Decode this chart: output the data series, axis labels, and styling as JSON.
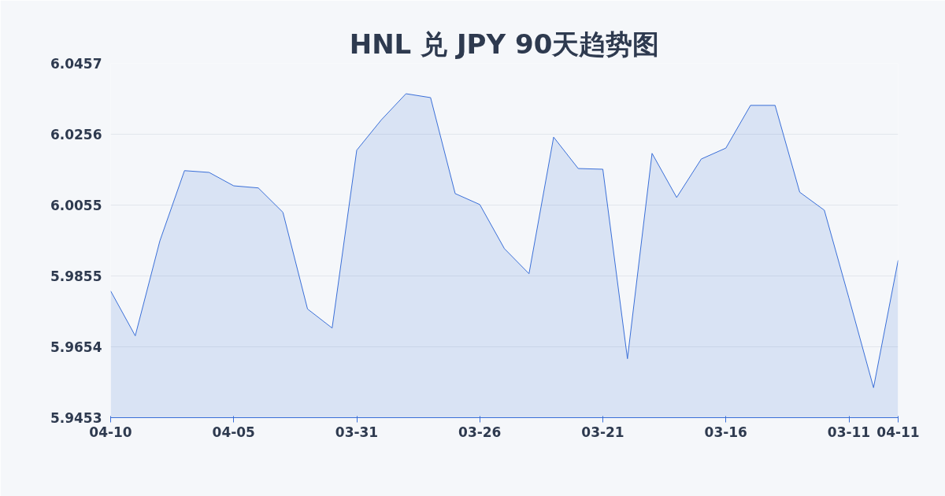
{
  "chart_data": {
    "type": "area",
    "title": "HNL 兑 JPY 90天趋势图",
    "categories": [
      "04-10",
      null,
      null,
      null,
      null,
      "04-05",
      null,
      null,
      null,
      null,
      "03-31",
      null,
      null,
      null,
      null,
      "03-26",
      null,
      null,
      null,
      null,
      "03-21",
      null,
      null,
      null,
      null,
      "03-16",
      null,
      null,
      null,
      null,
      "03-11",
      null,
      "04-11"
    ],
    "series": [
      {
        "color": "#3a6fd8",
        "values": [
          5.9812,
          5.9685,
          5.9954,
          6.0153,
          6.0148,
          6.011,
          6.0104,
          6.0035,
          5.9761,
          5.9707,
          6.0211,
          6.0297,
          6.0371,
          6.036,
          6.0088,
          6.0057,
          5.9932,
          5.9861,
          6.0248,
          6.0159,
          6.0157,
          5.962,
          6.0202,
          6.0077,
          6.0186,
          6.0217,
          6.0338,
          6.0338,
          6.0092,
          6.0041,
          5.9792,
          5.9538,
          5.9899
        ]
      }
    ],
    "ylim": [
      5.9453,
      6.0457
    ],
    "yticks": [
      5.9453,
      5.9654,
      5.9855,
      6.0055,
      6.0256,
      6.0457
    ],
    "grid": "y"
  }
}
